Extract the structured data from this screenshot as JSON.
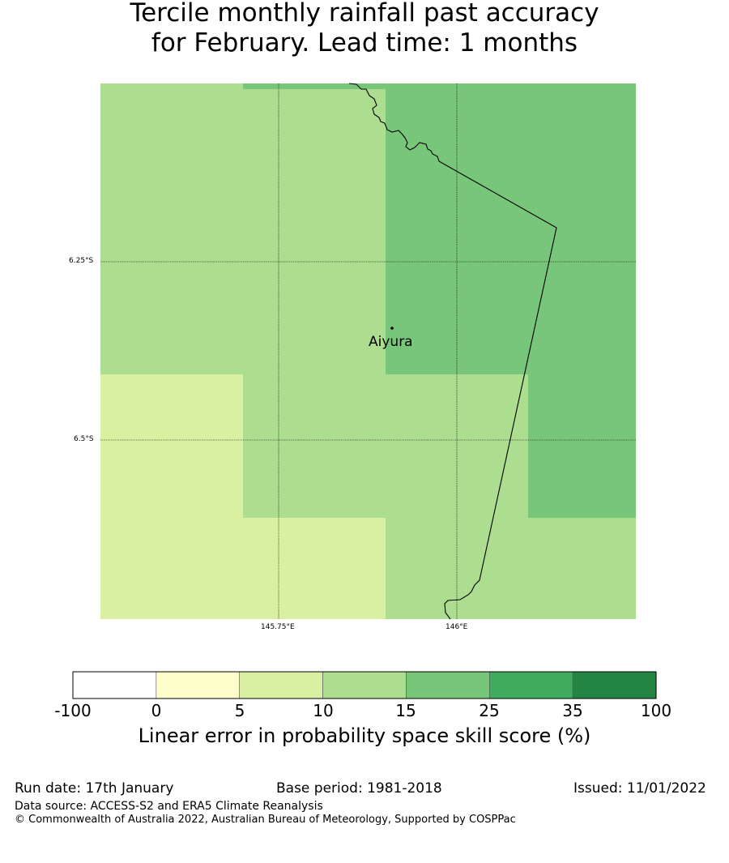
{
  "title": {
    "line1": "Tercile monthly rainfall past accuracy",
    "line2": "for February. Lead time: 1 months"
  },
  "map": {
    "lat_labels": [
      "6.25°S",
      "6.5°S"
    ],
    "lon_labels": [
      "145.75°E",
      "146°E"
    ],
    "place": "Aiyura",
    "colors": {
      "0-5": "#ffffcc",
      "5-10": "#d9f0a3",
      "10-15": "#addd8e",
      "15-25": "#78c679",
      "25-35": "#41ab5d",
      "35-100": "#238443"
    }
  },
  "colorbar": {
    "ticks": [
      "-100",
      "0",
      "5",
      "10",
      "15",
      "25",
      "35",
      "100"
    ],
    "colors": [
      "#ffffff",
      "#ffffcc",
      "#d9f0a3",
      "#addd8e",
      "#78c679",
      "#41ab5d",
      "#238443"
    ],
    "label": "Linear error in probability space skill score (%)"
  },
  "footer": {
    "run_date": "Run date: 17th January",
    "base_period": "Base period: 1981-2018",
    "issued": "Issued: 11/01/2022",
    "data_source": "Data source: ACCESS-S2 and ERA5 Climate Reanalysis",
    "copyright": "© Commonwealth of Australia 2022, Australian Bureau of Meteorology, Supported by COSPPac"
  }
}
